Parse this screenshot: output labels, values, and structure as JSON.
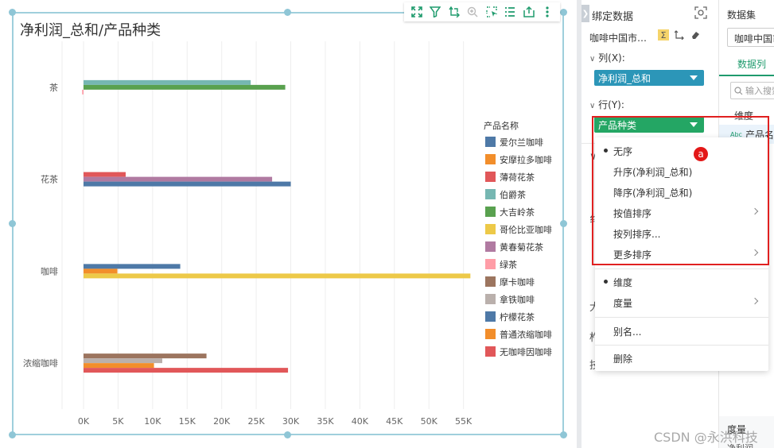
{
  "chart_toolbar": {
    "icons": [
      "expand-icon",
      "filter-icon",
      "drill-icon",
      "zoom-icon",
      "select-icon",
      "list-icon",
      "export-icon",
      "more-icon"
    ]
  },
  "binding_panel": {
    "title": "绑定数据",
    "dataset_name": "咖啡中国市…",
    "column_label": "列(X):",
    "column_field": "净利润_总和",
    "column_field_color": "#2c96b8",
    "row_label": "行(Y):",
    "row_field": "产品种类",
    "row_field_color": "#24a664",
    "partial_letters": [
      "∨",
      "纟",
      "大",
      "柞",
      "技"
    ]
  },
  "dataset_panel": {
    "title": "数据集",
    "select_value": "咖啡中国市场",
    "tab_label": "数据列",
    "search_placeholder": "输入搜索",
    "dimension_label": "维度",
    "field_badge": "Abc",
    "field_name": "产品名称",
    "measure_label": "度量",
    "measure_sub": "净利润"
  },
  "context_menu": {
    "items": [
      {
        "label": "无序",
        "selected": true,
        "submenu": false
      },
      {
        "label": "升序(净利润_总和)",
        "selected": false,
        "submenu": false
      },
      {
        "label": "降序(净利润_总和)",
        "selected": false,
        "submenu": false
      },
      {
        "label": "按值排序",
        "selected": false,
        "submenu": true
      },
      {
        "label": "按列排序...",
        "selected": false,
        "submenu": false
      },
      {
        "label": "更多排序",
        "selected": false,
        "submenu": true
      },
      {
        "label": "维度",
        "selected": true,
        "submenu": false
      },
      {
        "label": "度量",
        "selected": false,
        "submenu": true
      },
      {
        "label": "别名...",
        "selected": false,
        "submenu": false
      },
      {
        "label": "删除",
        "selected": false,
        "submenu": false
      }
    ],
    "marker": "a",
    "highlight_color": "#e02020"
  },
  "watermark": "CSDN @永洪科技",
  "chart_data": {
    "type": "bar",
    "orientation": "horizontal",
    "title": "净利润_总和/产品种类",
    "xlabel": "",
    "ylabel": "",
    "xlim": [
      0,
      57000
    ],
    "x_ticks": [
      0,
      5000,
      10000,
      15000,
      20000,
      25000,
      30000,
      35000,
      40000,
      45000,
      50000,
      55000
    ],
    "x_tick_labels": [
      "0K",
      "5K",
      "10K",
      "15K",
      "20K",
      "25K",
      "30K",
      "35K",
      "40K",
      "45K",
      "50K",
      "55K"
    ],
    "grid": true,
    "legend_title": "产品名称",
    "legend_position": "right",
    "categories": [
      "茶",
      "花茶",
      "咖啡",
      "浓缩咖啡"
    ],
    "series": [
      {
        "name": "爱尔兰咖啡",
        "color": "#4e79a7"
      },
      {
        "name": "安摩拉多咖啡",
        "color": "#f28e2b"
      },
      {
        "name": "薄荷花茶",
        "color": "#e15759"
      },
      {
        "name": "伯爵茶",
        "color": "#76b7b2"
      },
      {
        "name": "大吉岭茶",
        "color": "#59a14f"
      },
      {
        "name": "哥伦比亚咖啡",
        "color": "#edc948"
      },
      {
        "name": "黄春菊花茶",
        "color": "#b07aa1"
      },
      {
        "name": "绿茶",
        "color": "#ff9da7"
      },
      {
        "name": "摩卡咖啡",
        "color": "#9c755f"
      },
      {
        "name": "拿铁咖啡",
        "color": "#bab0ac"
      },
      {
        "name": "柠檬花茶",
        "color": "#4e79a7"
      },
      {
        "name": "普通浓缩咖啡",
        "color": "#f28e2b"
      },
      {
        "name": "无咖啡因咖啡",
        "color": "#e15759"
      }
    ],
    "bars": [
      {
        "category": "茶",
        "series": "伯爵茶",
        "value": 24200
      },
      {
        "category": "茶",
        "series": "大吉岭茶",
        "value": 29200
      },
      {
        "category": "茶",
        "series": "绿茶",
        "value": -200
      },
      {
        "category": "花茶",
        "series": "薄荷花茶",
        "value": 6100
      },
      {
        "category": "花茶",
        "series": "黄春菊花茶",
        "value": 27300
      },
      {
        "category": "花茶",
        "series": "柠檬花茶",
        "value": 30000
      },
      {
        "category": "咖啡",
        "series": "爱尔兰咖啡",
        "value": 14000
      },
      {
        "category": "咖啡",
        "series": "安摩拉多咖啡",
        "value": 4900
      },
      {
        "category": "咖啡",
        "series": "哥伦比亚咖啡",
        "value": 56000
      },
      {
        "category": "浓缩咖啡",
        "series": "摩卡咖啡",
        "value": 17800
      },
      {
        "category": "浓缩咖啡",
        "series": "拿铁咖啡",
        "value": 11400
      },
      {
        "category": "浓缩咖啡",
        "series": "普通浓缩咖啡",
        "value": 10200
      },
      {
        "category": "浓缩咖啡",
        "series": "无咖啡因咖啡",
        "value": 29600
      }
    ]
  }
}
